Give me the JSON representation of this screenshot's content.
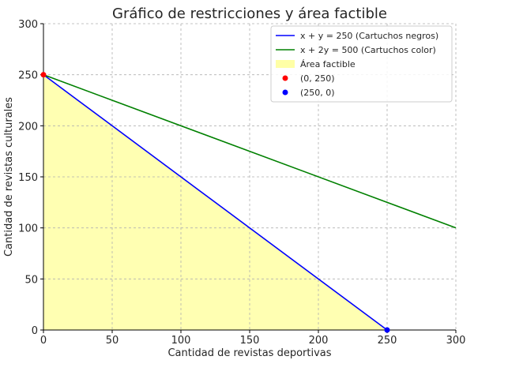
{
  "chart_data": {
    "type": "line",
    "title": "Gráfico de restricciones y área factible",
    "xlabel": "Cantidad de revistas deportivas",
    "ylabel": "Cantidad de revistas culturales",
    "xlim": [
      0,
      300
    ],
    "ylim": [
      0,
      300
    ],
    "xticks": [
      "0",
      "50",
      "100",
      "150",
      "200",
      "250",
      "300"
    ],
    "yticks": [
      "0",
      "50",
      "100",
      "150",
      "200",
      "250",
      "300"
    ],
    "grid": true,
    "legend_position": "top-right",
    "series": [
      {
        "name": "x + y = 250 (Cartuchos negros)",
        "kind": "line",
        "color": "#0000ff",
        "points": [
          [
            0,
            250
          ],
          [
            250,
            0
          ]
        ]
      },
      {
        "name": "x + 2y = 500 (Cartuchos color)",
        "kind": "line",
        "color": "#008000",
        "points": [
          [
            0,
            250
          ],
          [
            300,
            100
          ]
        ]
      }
    ],
    "area": {
      "name": "Área factible",
      "color": "#ffff00",
      "opacity": 0.3,
      "polygon": [
        [
          0,
          0
        ],
        [
          0,
          250
        ],
        [
          250,
          0
        ]
      ]
    },
    "points": [
      {
        "name": "(0, 250)",
        "color": "#ff0000",
        "x": 0,
        "y": 250
      },
      {
        "name": "(250, 0)",
        "color": "#0000ff",
        "x": 250,
        "y": 0
      }
    ]
  }
}
